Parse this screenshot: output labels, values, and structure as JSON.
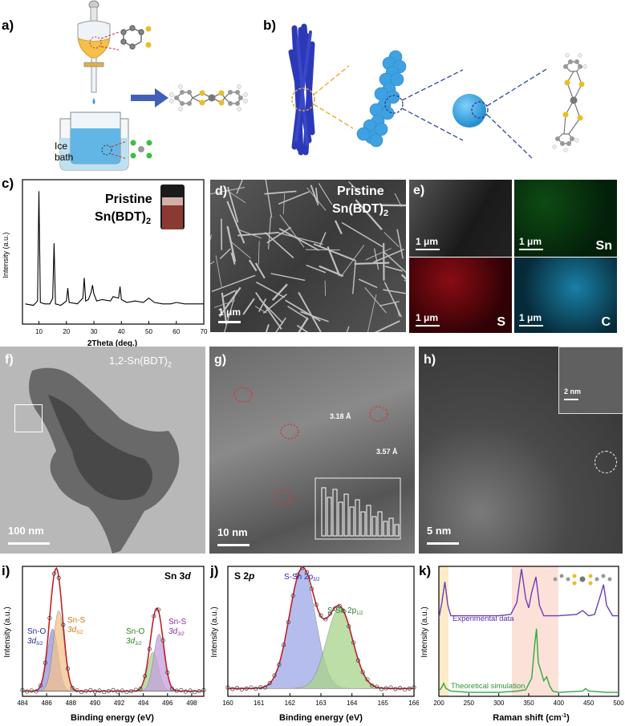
{
  "panels": {
    "a": {
      "label": "a)",
      "bath": "Ice\nbath"
    },
    "b": {
      "label": "b)"
    },
    "c": {
      "label": "c)",
      "title": "Pristine",
      "subtitle": "Sn(BDT)",
      "sub2": "2"
    },
    "d": {
      "label": "d)",
      "title1": "Pristine",
      "title2": "Sn(BDT)",
      "title2sub": "2",
      "scale": "1 μm"
    },
    "e": {
      "label": "e)",
      "scale": "1 μm",
      "maps": [
        "Sn",
        "S",
        "C"
      ]
    },
    "f": {
      "label": "f)",
      "title": "1,2-Sn(BDT)",
      "title_sub": "2",
      "scale": "100 nm"
    },
    "g": {
      "label": "g)",
      "scale": "10 nm",
      "d1": "3.18 Å",
      "d2": "3.57 Å"
    },
    "h": {
      "label": "h)",
      "scale": "5 nm",
      "inset_scale": "2 nm"
    },
    "i": {
      "label": "i)",
      "title": "Sn 3d",
      "peaks": [
        "Sn-O",
        "Sn-S",
        "Sn-O",
        "Sn-S"
      ]
    },
    "j": {
      "label": "j)",
      "title": "S 2p",
      "peaks": [
        "S-Sn 2p",
        "S-Sn 2p"
      ]
    },
    "k": {
      "label": "k)",
      "series": [
        "Experimental data",
        "Theoretical simulation"
      ]
    }
  },
  "colors": {
    "sn_map": "#2e9a2e",
    "s_map": "#d01020",
    "c_map": "#1aa6cf",
    "fit_red": "#c0202a",
    "blue_fill": "#9da8e6",
    "orange_fill": "#f5c28a",
    "green_fill": "#a8d48a",
    "purple_fill": "#c4a0e0",
    "exp_line": "#6a3fb8",
    "sim_line": "#2faa3a"
  },
  "chart_data": [
    {
      "type": "line",
      "panel": "c",
      "xlabel": "2Theta (deg.)",
      "ylabel": "Intensity (a.u.)",
      "xlim": [
        10,
        70
      ],
      "xticks": [
        10,
        20,
        30,
        40,
        50,
        60,
        70
      ],
      "x": [
        5,
        8,
        9.5,
        10,
        10.5,
        12,
        14,
        15,
        15.5,
        16,
        18,
        20,
        20.5,
        21,
        24,
        26,
        26.5,
        27,
        28,
        29,
        29.5,
        30,
        31,
        33,
        36,
        37,
        39,
        39.5,
        40,
        42,
        45,
        48,
        50,
        52,
        55,
        58,
        60,
        63,
        66,
        70
      ],
      "y": [
        14,
        13,
        16,
        92,
        15,
        14,
        14,
        18,
        56,
        14,
        13,
        16,
        25,
        15,
        14,
        18,
        32,
        16,
        17,
        22,
        27,
        21,
        16,
        17,
        16,
        19,
        18,
        26,
        17,
        15,
        16,
        15,
        18,
        15,
        14,
        14,
        15,
        14,
        14,
        14
      ]
    },
    {
      "type": "line",
      "panel": "i",
      "title": "Sn 3d",
      "xlabel": "Binding energy (eV)",
      "ylabel": "Intensity (a.u.)",
      "xlim": [
        484,
        499
      ],
      "xticks": [
        484,
        486,
        488,
        490,
        492,
        494,
        496,
        498
      ],
      "series": [
        {
          "name": "Sn-O 3d5/2",
          "center": 486.5,
          "height": 48
        },
        {
          "name": "Sn-S 3d5/2",
          "center": 487.0,
          "height": 62
        },
        {
          "name": "Sn-O 3d3/2",
          "center": 494.8,
          "height": 30
        },
        {
          "name": "Sn-S 3d3/2",
          "center": 495.3,
          "height": 44
        }
      ]
    },
    {
      "type": "line",
      "panel": "j",
      "title": "S 2p",
      "xlabel": "Binding energy (eV)",
      "ylabel": "Intensity (a.u.)",
      "xlim": [
        160,
        166
      ],
      "xticks": [
        160,
        161,
        162,
        163,
        164,
        165,
        166
      ],
      "series": [
        {
          "name": "S-Sn 2p3/2",
          "center": 162.4,
          "height": 92
        },
        {
          "name": "S-Sn 2p1/2",
          "center": 163.6,
          "height": 62
        }
      ]
    },
    {
      "type": "line",
      "panel": "k",
      "xlabel": "Raman shift (cm-1)",
      "ylabel": "Intensity (a.u.)",
      "xlim": [
        200,
        500
      ],
      "xticks": [
        200,
        250,
        300,
        350,
        400,
        450,
        500
      ],
      "series": [
        {
          "name": "Experimental data",
          "x": [
            200,
            205,
            210,
            215,
            220,
            250,
            300,
            320,
            330,
            338,
            345,
            350,
            355,
            362,
            368,
            375,
            400,
            430,
            440,
            450,
            460,
            470,
            475,
            480,
            490,
            500
          ],
          "y": [
            60,
            72,
            88,
            70,
            62,
            62,
            62,
            63,
            72,
            98,
            75,
            68,
            80,
            92,
            70,
            62,
            62,
            63,
            66,
            62,
            63,
            78,
            86,
            70,
            62,
            62
          ]
        },
        {
          "name": "Theoretical simulation",
          "x": [
            200,
            205,
            208,
            212,
            220,
            250,
            300,
            330,
            345,
            355,
            360,
            363,
            366,
            370,
            375,
            380,
            385,
            390,
            400,
            440,
            445,
            450,
            480,
            500
          ],
          "y": [
            4,
            7,
            10,
            6,
            4,
            3,
            3,
            4,
            5,
            14,
            40,
            52,
            26,
            20,
            12,
            15,
            8,
            4,
            3,
            4,
            6,
            4,
            3,
            3
          ]
        }
      ]
    }
  ]
}
